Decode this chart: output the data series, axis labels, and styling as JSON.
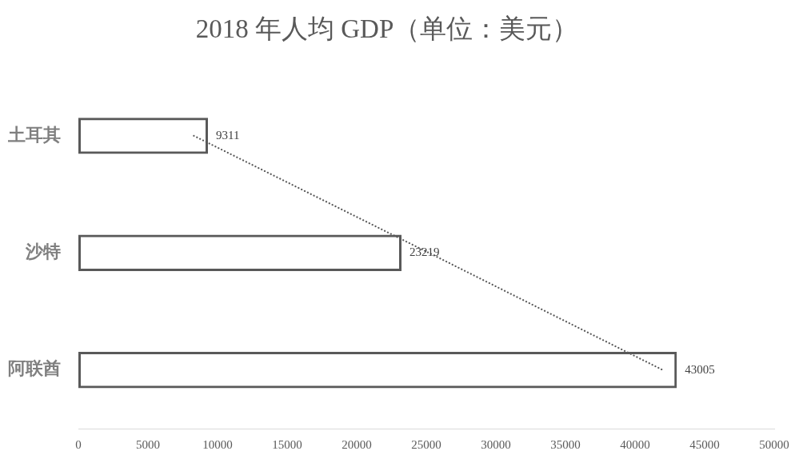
{
  "chart_data": {
    "type": "bar",
    "orientation": "horizontal",
    "title": "2018 年人均 GDP（单位：美元）",
    "categories": [
      "土耳其",
      "沙特",
      "阿联酋"
    ],
    "series": [
      {
        "color": "#595959",
        "values": [
          9311,
          23219,
          43005
        ],
        "value_labels": [
          "9311",
          "23219",
          "43005"
        ]
      },
      {
        "type": "line",
        "color": "#595959",
        "values": [
          8300,
          25200,
          42000
        ],
        "line_style": "dotted",
        "marker": "none"
      }
    ],
    "xlim": [
      0,
      50000
    ],
    "xticks": [
      0,
      5000,
      10000,
      15000,
      20000,
      25000,
      30000,
      35000,
      40000,
      45000,
      50000
    ]
  }
}
